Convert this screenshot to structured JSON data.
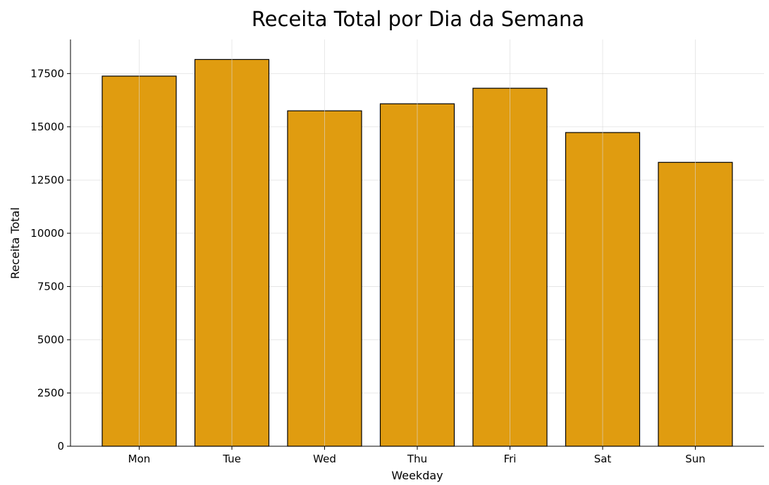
{
  "chart_data": {
    "type": "bar",
    "title": "Receita Total por Dia da Semana",
    "xlabel": "Weekday",
    "ylabel": "Receita Total",
    "categories": [
      "Mon",
      "Tue",
      "Wed",
      "Thu",
      "Fri",
      "Sat",
      "Sun"
    ],
    "values": [
      17380,
      18160,
      15750,
      16080,
      16810,
      14730,
      13330
    ],
    "ylim": [
      0,
      19100
    ],
    "yticks": [
      0,
      2500,
      5000,
      7500,
      10000,
      12500,
      15000,
      17500
    ],
    "ytick_labels": [
      "0",
      "2500",
      "5000",
      "7500",
      "10000",
      "12500",
      "15000",
      "17500"
    ],
    "grid": true,
    "colors": {
      "bar": "#e09c10",
      "edge": "#000000"
    }
  }
}
